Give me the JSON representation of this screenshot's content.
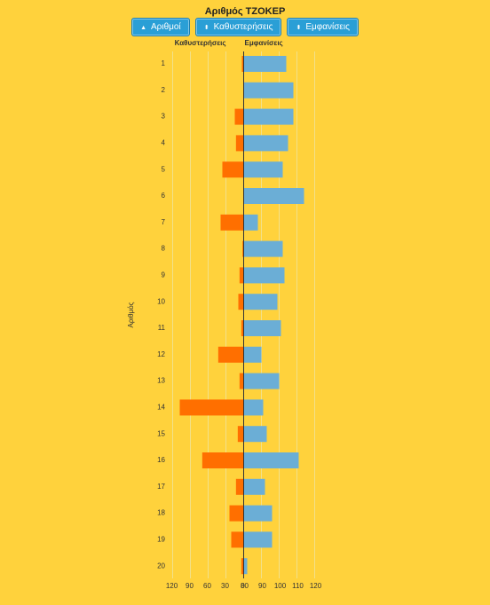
{
  "chart_data": {
    "type": "diverging_bar",
    "title": "Αριθμός ΤΖΟΚΕΡ",
    "buttons": [
      "Αριθμοί",
      "Καθυστερήσεις",
      "Εμφανίσεις"
    ],
    "y_label": "Αριθμός",
    "categories": [
      "1",
      "2",
      "3",
      "4",
      "5",
      "6",
      "7",
      "8",
      "9",
      "10",
      "11",
      "12",
      "13",
      "14",
      "15",
      "16",
      "17",
      "18",
      "19",
      "20"
    ],
    "grid": true,
    "series": [
      {
        "name": "Καθυστερήσεις",
        "color": "#ff6f00",
        "side": "left",
        "values": [
          3,
          0,
          15,
          13,
          36,
          0,
          39,
          2,
          7,
          9,
          4,
          43,
          7,
          108,
          10,
          70,
          13,
          24,
          21,
          4
        ],
        "xlim": [
          0,
          120
        ],
        "xticks": [
          120,
          90,
          60,
          30,
          0
        ]
      },
      {
        "name": "Εμφανίσεις",
        "color": "#6baed6",
        "side": "right",
        "values": [
          104,
          108,
          108,
          105,
          102,
          114,
          88,
          102,
          103,
          99,
          101,
          90,
          100,
          91,
          93,
          111,
          92,
          96,
          96,
          82
        ],
        "xlim": [
          80,
          120
        ],
        "xticks": [
          80,
          90,
          100,
          110,
          120
        ]
      }
    ]
  }
}
